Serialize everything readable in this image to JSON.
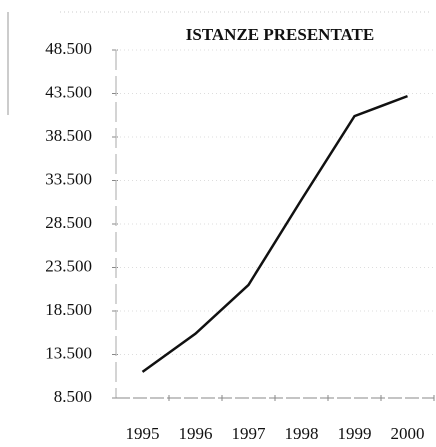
{
  "chart_data": {
    "type": "line",
    "title": "ISTANZE PRESENTATE",
    "categories": [
      "1995",
      "1996",
      "1997",
      "1998",
      "1999",
      "2000"
    ],
    "series": [
      {
        "name": "Istanze presentate",
        "color": "#111111",
        "values": [
          11500,
          15900,
          21500,
          31300,
          40900,
          43200
        ]
      }
    ],
    "ylim": [
      8500,
      48500
    ],
    "yticks": [
      {
        "value": 8500,
        "label": "8.500"
      },
      {
        "value": 13500,
        "label": "13.500"
      },
      {
        "value": 18500,
        "label": "18.500"
      },
      {
        "value": 23500,
        "label": "23.500"
      },
      {
        "value": 28500,
        "label": "28.500"
      },
      {
        "value": 33500,
        "label": "33.500"
      },
      {
        "value": 38500,
        "label": "38.500"
      },
      {
        "value": 43500,
        "label": "43.500"
      },
      {
        "value": 48500,
        "label": "48.500"
      }
    ],
    "grid": true
  }
}
